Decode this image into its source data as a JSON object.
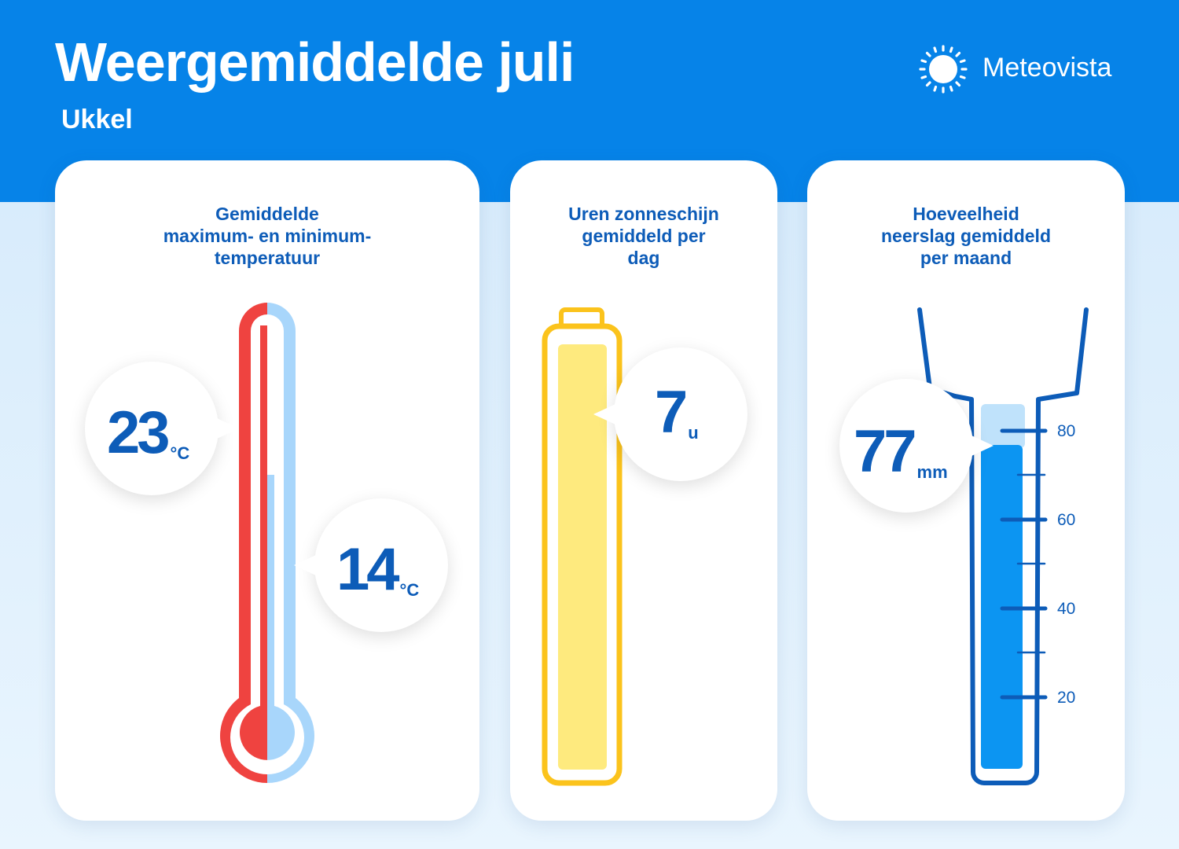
{
  "header": {
    "title": "Weergemiddelde juli",
    "location": "Ukkel",
    "brand": "Meteovista",
    "brand_icon": "sun-icon"
  },
  "colors": {
    "header_blue": "#0683e8",
    "text_blue": "#0d5cb8",
    "max_red": "#ef4340",
    "min_light_blue": "#a8d6fb",
    "sun_yellow": "#fbc31c",
    "sun_fill": "#feea7e",
    "rain_blue": "#0c95f2"
  },
  "cards": {
    "temperature": {
      "title": "Gemiddelde\nmaximum- en minimum-\ntemperatuur",
      "max": {
        "value": "23",
        "unit": "°C"
      },
      "min": {
        "value": "14",
        "unit": "°C"
      }
    },
    "sunshine": {
      "title": "Uren zonneschijn\ngemiddeld per\ndag",
      "value": "7",
      "unit": "u"
    },
    "precipitation": {
      "title": "Hoeveelheid\nneerslag gemiddeld\nper maand",
      "value": "77",
      "unit": "mm",
      "scale": [
        "80",
        "60",
        "40",
        "20"
      ]
    }
  }
}
